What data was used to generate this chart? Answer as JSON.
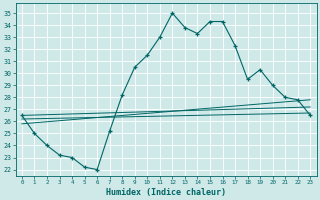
{
  "xlabel": "Humidex (Indice chaleur)",
  "bg_color": "#cfe8e8",
  "grid_color": "#b8d8d8",
  "line_color": "#006666",
  "xlim": [
    -0.5,
    23.5
  ],
  "ylim": [
    21.5,
    35.8
  ],
  "yticks": [
    22,
    23,
    24,
    25,
    26,
    27,
    28,
    29,
    30,
    31,
    32,
    33,
    34,
    35
  ],
  "xticks": [
    0,
    1,
    2,
    3,
    4,
    5,
    6,
    7,
    8,
    9,
    10,
    11,
    12,
    13,
    14,
    15,
    16,
    17,
    18,
    19,
    20,
    21,
    22,
    23
  ],
  "series": [
    [
      0,
      26.5
    ],
    [
      1,
      25.0
    ],
    [
      2,
      24.0
    ],
    [
      3,
      23.2
    ],
    [
      4,
      23.0
    ],
    [
      5,
      22.2
    ],
    [
      6,
      22.0
    ],
    [
      7,
      25.2
    ],
    [
      8,
      28.2
    ],
    [
      9,
      30.5
    ],
    [
      10,
      31.5
    ],
    [
      11,
      33.0
    ],
    [
      12,
      35.0
    ],
    [
      13,
      33.8
    ],
    [
      14,
      33.3
    ],
    [
      15,
      34.3
    ],
    [
      16,
      34.3
    ],
    [
      17,
      32.3
    ],
    [
      18,
      29.5
    ],
    [
      19,
      30.3
    ],
    [
      20,
      29.0
    ],
    [
      21,
      28.0
    ],
    [
      22,
      27.8
    ],
    [
      23,
      26.5
    ]
  ],
  "line2": [
    [
      0,
      26.5
    ],
    [
      23,
      27.2
    ]
  ],
  "line3": [
    [
      0,
      26.2
    ],
    [
      23,
      26.7
    ]
  ],
  "line4": [
    [
      0,
      25.8
    ],
    [
      23,
      27.8
    ]
  ]
}
